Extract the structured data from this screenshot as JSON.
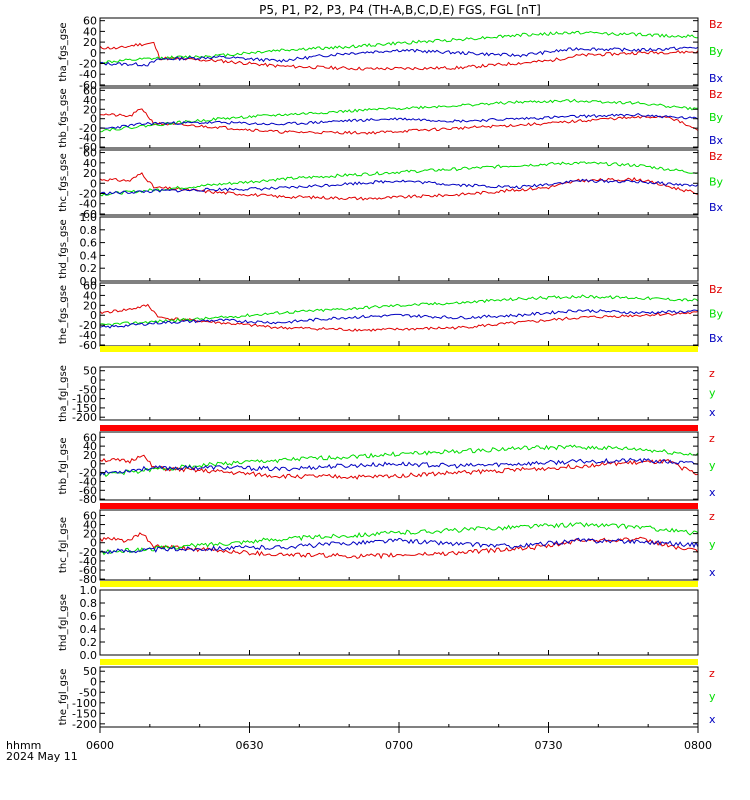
{
  "title": "P5, P1, P2, P3, P4 (TH-A,B,C,D,E) FGS, FGL [nT]",
  "time_axis": {
    "ticks": [
      "0600",
      "0630",
      "0700",
      "0730",
      "0800"
    ],
    "label_units": "hhmm",
    "date": "2024 May 11"
  },
  "colors": {
    "z": "#e00000",
    "y": "#00dd00",
    "x": "#0000c0",
    "yellow": "#ffff00",
    "red_bar": "#ff0000",
    "axis": "#000000"
  },
  "chart_data": [
    {
      "type": "line",
      "ylabel": "tha_fgs_gse",
      "ylim": [
        -62,
        65
      ],
      "yticks": [
        "60",
        "40",
        "20",
        "0",
        "-20",
        "-40",
        "-60"
      ],
      "series": [
        {
          "name": "Bz",
          "color": "#e00000",
          "keys": [
            [
              0,
              10
            ],
            [
              0.03,
              8
            ],
            [
              0.06,
              15
            ],
            [
              0.09,
              18
            ],
            [
              0.1,
              -10
            ],
            [
              0.2,
              -15
            ],
            [
              0.3,
              -25
            ],
            [
              0.45,
              -30
            ],
            [
              0.6,
              -28
            ],
            [
              0.75,
              -15
            ],
            [
              0.8,
              -5
            ],
            [
              0.9,
              0
            ],
            [
              1,
              2
            ]
          ],
          "noise": 3,
          "seed": 11
        },
        {
          "name": "By",
          "color": "#00dd00",
          "keys": [
            [
              0,
              -18
            ],
            [
              0.1,
              -10
            ],
            [
              0.2,
              -5
            ],
            [
              0.3,
              5
            ],
            [
              0.4,
              10
            ],
            [
              0.5,
              18
            ],
            [
              0.6,
              25
            ],
            [
              0.7,
              33
            ],
            [
              0.8,
              38
            ],
            [
              0.9,
              34
            ],
            [
              1,
              30
            ]
          ],
          "noise": 3,
          "seed": 12
        },
        {
          "name": "Bx",
          "color": "#0000c0",
          "keys": [
            [
              0,
              -20
            ],
            [
              0.08,
              -22
            ],
            [
              0.1,
              -12
            ],
            [
              0.2,
              -8
            ],
            [
              0.3,
              -15
            ],
            [
              0.4,
              -2
            ],
            [
              0.5,
              5
            ],
            [
              0.6,
              0
            ],
            [
              0.7,
              -5
            ],
            [
              0.8,
              8
            ],
            [
              0.9,
              5
            ],
            [
              1,
              10
            ]
          ],
          "noise": 3,
          "seed": 13
        }
      ]
    },
    {
      "type": "line",
      "ylabel": "thb_fgs_gse",
      "ylim": [
        -62,
        65
      ],
      "yticks": [
        "60",
        "40",
        "20",
        "0",
        "-20",
        "-40",
        "-60"
      ],
      "series": [
        {
          "name": "Bz",
          "color": "#e00000",
          "keys": [
            [
              0,
              10
            ],
            [
              0.05,
              5
            ],
            [
              0.07,
              22
            ],
            [
              0.09,
              -10
            ],
            [
              0.2,
              -18
            ],
            [
              0.3,
              -28
            ],
            [
              0.45,
              -30
            ],
            [
              0.6,
              -20
            ],
            [
              0.75,
              -10
            ],
            [
              0.85,
              0
            ],
            [
              0.95,
              5
            ],
            [
              1,
              -25
            ]
          ],
          "noise": 3,
          "seed": 21
        },
        {
          "name": "By",
          "color": "#00dd00",
          "keys": [
            [
              0,
              -25
            ],
            [
              0.1,
              -12
            ],
            [
              0.2,
              0
            ],
            [
              0.3,
              8
            ],
            [
              0.4,
              15
            ],
            [
              0.5,
              22
            ],
            [
              0.6,
              28
            ],
            [
              0.7,
              35
            ],
            [
              0.8,
              38
            ],
            [
              0.9,
              33
            ],
            [
              1,
              20
            ]
          ],
          "noise": 3,
          "seed": 22
        },
        {
          "name": "Bx",
          "color": "#0000c0",
          "keys": [
            [
              0,
              -22
            ],
            [
              0.08,
              -10
            ],
            [
              0.2,
              -8
            ],
            [
              0.3,
              -12
            ],
            [
              0.4,
              -5
            ],
            [
              0.5,
              0
            ],
            [
              0.6,
              -5
            ],
            [
              0.7,
              0
            ],
            [
              0.8,
              5
            ],
            [
              0.9,
              8
            ],
            [
              1,
              0
            ]
          ],
          "noise": 3,
          "seed": 23
        }
      ]
    },
    {
      "type": "line",
      "ylabel": "thc_fgs_gse",
      "ylim": [
        -62,
        65
      ],
      "yticks": [
        "60",
        "40",
        "20",
        "0",
        "-20",
        "-40",
        "-60"
      ],
      "series": [
        {
          "name": "Bz",
          "color": "#e00000",
          "keys": [
            [
              0,
              8
            ],
            [
              0.05,
              5
            ],
            [
              0.07,
              20
            ],
            [
              0.09,
              -8
            ],
            [
              0.2,
              -18
            ],
            [
              0.3,
              -26
            ],
            [
              0.45,
              -30
            ],
            [
              0.6,
              -22
            ],
            [
              0.75,
              -8
            ],
            [
              0.8,
              5
            ],
            [
              0.9,
              8
            ],
            [
              1,
              -20
            ]
          ],
          "noise": 3,
          "seed": 31
        },
        {
          "name": "By",
          "color": "#00dd00",
          "keys": [
            [
              0,
              -22
            ],
            [
              0.1,
              -12
            ],
            [
              0.2,
              -2
            ],
            [
              0.3,
              8
            ],
            [
              0.4,
              15
            ],
            [
              0.5,
              22
            ],
            [
              0.6,
              28
            ],
            [
              0.7,
              35
            ],
            [
              0.8,
              40
            ],
            [
              0.9,
              35
            ],
            [
              1,
              20
            ]
          ],
          "noise": 3,
          "seed": 32
        },
        {
          "name": "Bx",
          "color": "#0000c0",
          "keys": [
            [
              0,
              -20
            ],
            [
              0.1,
              -15
            ],
            [
              0.2,
              -12
            ],
            [
              0.3,
              -10
            ],
            [
              0.4,
              -2
            ],
            [
              0.5,
              5
            ],
            [
              0.6,
              -3
            ],
            [
              0.7,
              -8
            ],
            [
              0.8,
              5
            ],
            [
              0.9,
              3
            ],
            [
              1,
              -5
            ]
          ],
          "noise": 3,
          "seed": 33
        }
      ]
    },
    {
      "type": "line",
      "ylabel": "thd_fgs_gse",
      "ylim": [
        0,
        1
      ],
      "yticks": [
        "1.0",
        "0.8",
        "0.6",
        "0.4",
        "0.2",
        "0.0"
      ],
      "series": []
    },
    {
      "type": "line",
      "ylabel": "the_fgs_gse",
      "ylim": [
        -62,
        65
      ],
      "yticks": [
        "60",
        "40",
        "20",
        "0",
        "-20",
        "-40",
        "-60"
      ],
      "series": [
        {
          "name": "Bz",
          "color": "#e00000",
          "keys": [
            [
              0,
              5
            ],
            [
              0.05,
              12
            ],
            [
              0.08,
              20
            ],
            [
              0.1,
              -5
            ],
            [
              0.2,
              -15
            ],
            [
              0.3,
              -25
            ],
            [
              0.45,
              -30
            ],
            [
              0.6,
              -25
            ],
            [
              0.75,
              -10
            ],
            [
              0.8,
              -5
            ],
            [
              0.9,
              0
            ],
            [
              1,
              5
            ]
          ],
          "noise": 3,
          "seed": 41
        },
        {
          "name": "By",
          "color": "#00dd00",
          "keys": [
            [
              0,
              -20
            ],
            [
              0.1,
              -12
            ],
            [
              0.2,
              -5
            ],
            [
              0.3,
              5
            ],
            [
              0.4,
              12
            ],
            [
              0.5,
              20
            ],
            [
              0.6,
              25
            ],
            [
              0.7,
              33
            ],
            [
              0.8,
              38
            ],
            [
              0.9,
              35
            ],
            [
              1,
              30
            ]
          ],
          "noise": 3,
          "seed": 42
        },
        {
          "name": "Bx",
          "color": "#0000c0",
          "keys": [
            [
              0,
              -25
            ],
            [
              0.1,
              -15
            ],
            [
              0.2,
              -10
            ],
            [
              0.3,
              -15
            ],
            [
              0.4,
              -5
            ],
            [
              0.5,
              0
            ],
            [
              0.6,
              -5
            ],
            [
              0.7,
              0
            ],
            [
              0.8,
              10
            ],
            [
              0.9,
              5
            ],
            [
              1,
              8
            ]
          ],
          "noise": 3,
          "seed": 43
        }
      ]
    },
    {
      "type": "line",
      "ylabel": "tha_fgl_gse",
      "ylim": [
        -215,
        70
      ],
      "yticks": [
        "50",
        "0",
        "-50",
        "-100",
        "-150",
        "-200"
      ],
      "bar": "yellow",
      "series": [
        {
          "name": "z",
          "color": "#e00000",
          "keys": []
        },
        {
          "name": "y",
          "color": "#00dd00",
          "keys": []
        },
        {
          "name": "x",
          "color": "#0000c0",
          "keys": []
        }
      ]
    },
    {
      "type": "line",
      "ylabel": "thb_fgl_gse",
      "ylim": [
        -82,
        72
      ],
      "yticks": [
        "60",
        "40",
        "20",
        "0",
        "-20",
        "-40",
        "-60",
        "-80"
      ],
      "bar": "red",
      "series": [
        {
          "name": "z",
          "color": "#e00000",
          "keys": [
            [
              0,
              10
            ],
            [
              0.05,
              5
            ],
            [
              0.07,
              22
            ],
            [
              0.09,
              -10
            ],
            [
              0.2,
              -18
            ],
            [
              0.3,
              -28
            ],
            [
              0.45,
              -30
            ],
            [
              0.6,
              -20
            ],
            [
              0.75,
              -10
            ],
            [
              0.85,
              0
            ],
            [
              0.95,
              5
            ],
            [
              1,
              -25
            ]
          ],
          "noise": 5,
          "seed": 51
        },
        {
          "name": "y",
          "color": "#00dd00",
          "keys": [
            [
              0,
              -25
            ],
            [
              0.1,
              -12
            ],
            [
              0.2,
              0
            ],
            [
              0.3,
              8
            ],
            [
              0.4,
              15
            ],
            [
              0.5,
              22
            ],
            [
              0.6,
              28
            ],
            [
              0.7,
              35
            ],
            [
              0.8,
              38
            ],
            [
              0.9,
              33
            ],
            [
              1,
              20
            ]
          ],
          "noise": 5,
          "seed": 52
        },
        {
          "name": "x",
          "color": "#0000c0",
          "keys": [
            [
              0,
              -22
            ],
            [
              0.08,
              -10
            ],
            [
              0.2,
              -8
            ],
            [
              0.3,
              -12
            ],
            [
              0.4,
              -5
            ],
            [
              0.5,
              0
            ],
            [
              0.6,
              -5
            ],
            [
              0.7,
              0
            ],
            [
              0.8,
              5
            ],
            [
              0.9,
              8
            ],
            [
              1,
              0
            ]
          ],
          "noise": 5,
          "seed": 53
        }
      ]
    },
    {
      "type": "line",
      "ylabel": "thc_fgl_gse",
      "ylim": [
        -82,
        72
      ],
      "yticks": [
        "60",
        "40",
        "20",
        "0",
        "-20",
        "-40",
        "-60",
        "-80"
      ],
      "bar": "red",
      "series": [
        {
          "name": "z",
          "color": "#e00000",
          "keys": [
            [
              0,
              8
            ],
            [
              0.05,
              5
            ],
            [
              0.07,
              20
            ],
            [
              0.09,
              -8
            ],
            [
              0.2,
              -18
            ],
            [
              0.3,
              -26
            ],
            [
              0.45,
              -30
            ],
            [
              0.6,
              -22
            ],
            [
              0.75,
              -8
            ],
            [
              0.8,
              5
            ],
            [
              0.9,
              8
            ],
            [
              1,
              -20
            ]
          ],
          "noise": 5,
          "seed": 61
        },
        {
          "name": "y",
          "color": "#00dd00",
          "keys": [
            [
              0,
              -22
            ],
            [
              0.1,
              -12
            ],
            [
              0.2,
              -2
            ],
            [
              0.3,
              8
            ],
            [
              0.4,
              15
            ],
            [
              0.5,
              22
            ],
            [
              0.6,
              28
            ],
            [
              0.7,
              35
            ],
            [
              0.8,
              40
            ],
            [
              0.9,
              35
            ],
            [
              1,
              20
            ]
          ],
          "noise": 5,
          "seed": 62
        },
        {
          "name": "x",
          "color": "#0000c0",
          "keys": [
            [
              0,
              -20
            ],
            [
              0.1,
              -15
            ],
            [
              0.2,
              -12
            ],
            [
              0.3,
              -10
            ],
            [
              0.4,
              -2
            ],
            [
              0.5,
              5
            ],
            [
              0.6,
              -3
            ],
            [
              0.7,
              -8
            ],
            [
              0.8,
              5
            ],
            [
              0.9,
              3
            ],
            [
              1,
              -5
            ]
          ],
          "noise": 5,
          "seed": 63
        }
      ]
    },
    {
      "type": "line",
      "ylabel": "thd_fgl_gse",
      "ylim": [
        0,
        1
      ],
      "yticks": [
        "1.0",
        "0.8",
        "0.6",
        "0.4",
        "0.2",
        "0.0"
      ],
      "bar": "yellow",
      "series": []
    },
    {
      "type": "line",
      "ylabel": "the_fgl_gse",
      "ylim": [
        -215,
        70
      ],
      "yticks": [
        "50",
        "0",
        "-50",
        "-100",
        "-150",
        "-200"
      ],
      "bar": "yellow",
      "series": [
        {
          "name": "z",
          "color": "#e00000",
          "keys": []
        },
        {
          "name": "y",
          "color": "#00dd00",
          "keys": []
        },
        {
          "name": "x",
          "color": "#0000c0",
          "keys": []
        }
      ]
    }
  ]
}
